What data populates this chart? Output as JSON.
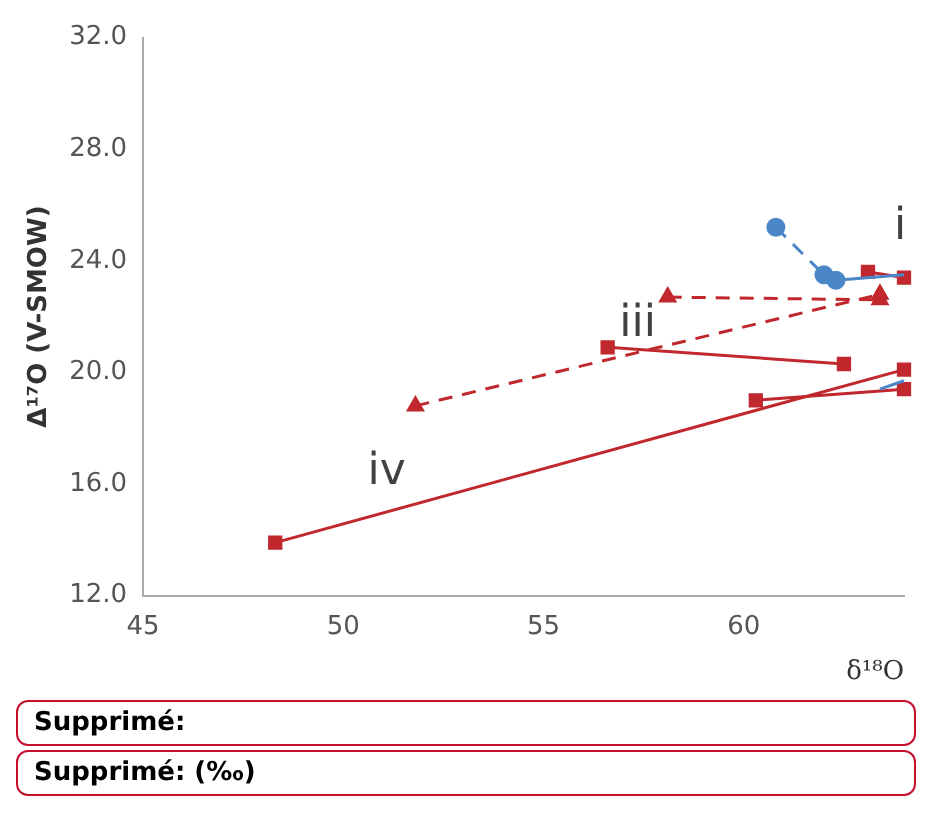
{
  "chart_data": {
    "type": "line",
    "ylabel": "Δ¹⁷O (V-SMOW)",
    "xlabel": "δ¹⁸O",
    "xlim": [
      45,
      64
    ],
    "xticks": [
      45,
      50,
      55,
      60
    ],
    "ylim": [
      12,
      32
    ],
    "yticks": [
      {
        "value": 12,
        "label": "12.0"
      },
      {
        "value": 16,
        "label": "16.0"
      },
      {
        "value": 20,
        "label": "20.0"
      },
      {
        "value": 24,
        "label": "24.0"
      },
      {
        "value": 28,
        "label": "28.0"
      },
      {
        "value": 32,
        "label": "32.0"
      }
    ],
    "grid": false,
    "legend": false,
    "series": [
      {
        "color": "#c0282d",
        "x": [
          48.3,
          64
        ],
        "values": [
          13.9,
          20.1
        ],
        "marker": "square",
        "line_style": "solid"
      },
      {
        "color": "#c0282d",
        "x": [
          56.6,
          62.5
        ],
        "values": [
          20.9,
          20.3
        ],
        "marker": "square",
        "line_style": "solid"
      },
      {
        "color": "#c0282d",
        "x": [
          60.3,
          64
        ],
        "values": [
          19.0,
          19.4
        ],
        "marker": "square",
        "line_style": "solid"
      },
      {
        "color": "#c0282d",
        "x": [
          51.8,
          63.4
        ],
        "values": [
          18.8,
          22.8
        ],
        "marker": "triangle",
        "line_style": "dashed"
      },
      {
        "color": "#c0282d",
        "x": [
          58.1,
          63.4
        ],
        "values": [
          22.7,
          22.6
        ],
        "marker": "triangle",
        "line_style": "dashed"
      },
      {
        "color": "#c0282d",
        "x": [
          63.1,
          64
        ],
        "values": [
          23.6,
          23.4
        ],
        "marker": "square",
        "line_style": "solid"
      },
      {
        "color": "#4a86c8",
        "x": [
          60.8,
          62.0,
          62.3
        ],
        "values": [
          25.2,
          23.5,
          23.3
        ],
        "marker": "circle",
        "line_style": "dashed"
      },
      {
        "color": "#4a86c8",
        "x": [
          62.3,
          64
        ],
        "values": [
          23.3,
          23.5
        ],
        "marker": "none",
        "line_style": "solid"
      },
      {
        "color": "#4a86c8",
        "x": [
          63.4,
          64
        ],
        "values": [
          19.4,
          19.7
        ],
        "marker": "none",
        "line_style": "solid"
      }
    ],
    "annotations": [
      "i",
      "iii",
      "iv",
      "Supprimé:",
      "Supprimé: (‰)"
    ]
  }
}
